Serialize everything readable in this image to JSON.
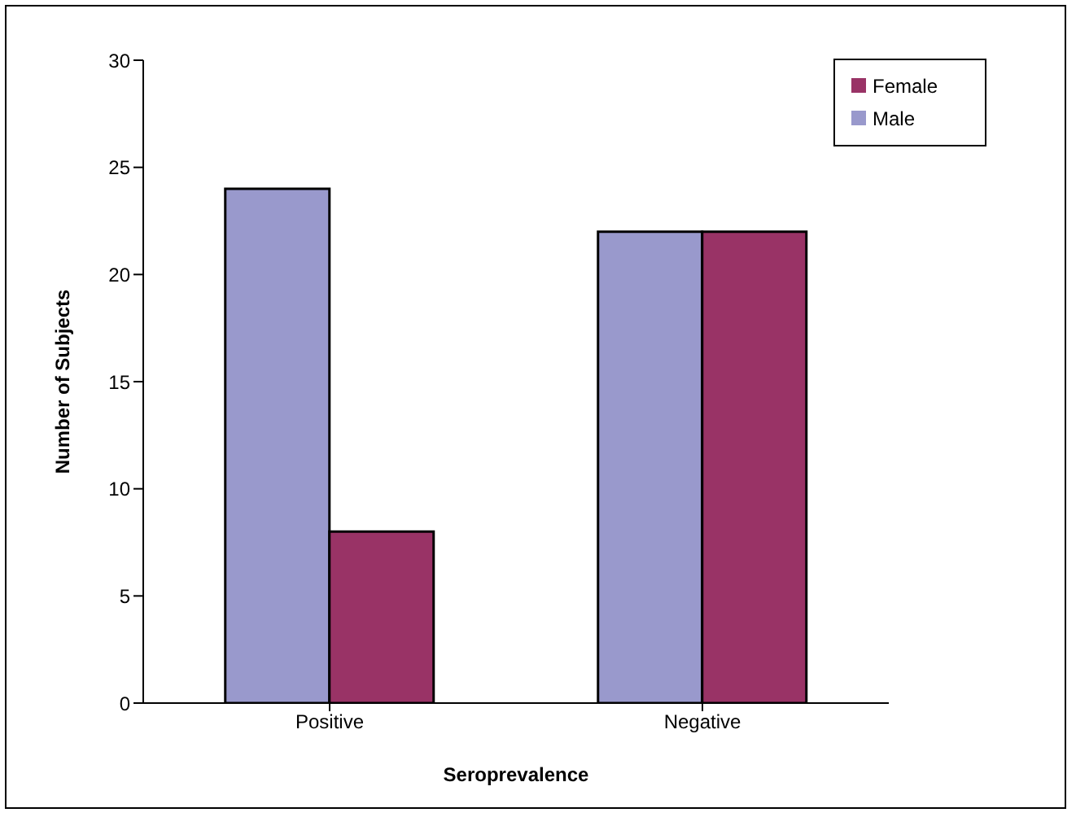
{
  "chart_data": {
    "type": "bar",
    "xlabel": "Seroprevalence",
    "ylabel": "Number of Subjects",
    "categories": [
      "Positive",
      "Negative"
    ],
    "series": [
      {
        "name": "Male",
        "color": "#9999cc",
        "values": [
          24,
          22
        ]
      },
      {
        "name": "Female",
        "color": "#993366",
        "values": [
          8,
          22
        ]
      }
    ],
    "ylim": [
      0,
      30
    ],
    "yticks": [
      0,
      5,
      10,
      15,
      20,
      25,
      30
    ],
    "grid": false,
    "legend": "top right"
  }
}
